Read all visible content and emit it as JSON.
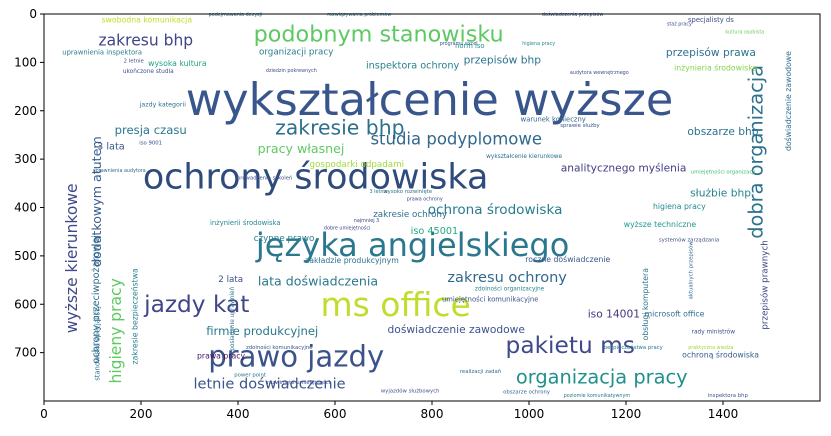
{
  "chart_data": {
    "type": "wordcloud",
    "xlim": [
      0,
      1600
    ],
    "ylim": [
      800,
      0
    ],
    "x_ticks": [
      0,
      200,
      400,
      600,
      800,
      1000,
      1200,
      1400
    ],
    "y_ticks": [
      0,
      100,
      200,
      300,
      400,
      500,
      600,
      700
    ],
    "background": "#ffffff",
    "words": [
      {
        "text": "wykształcenie wyższe",
        "x": 795,
        "y": 178,
        "size": 92,
        "color": "#39568c",
        "rotate": 0
      },
      {
        "text": "ochrony środowiska",
        "x": 560,
        "y": 338,
        "size": 72,
        "color": "#2f4b7c",
        "rotate": 0
      },
      {
        "text": "języka angielskiego",
        "x": 760,
        "y": 478,
        "size": 66,
        "color": "#2b788e",
        "rotate": 0
      },
      {
        "text": "ms office",
        "x": 725,
        "y": 600,
        "size": 68,
        "color": "#bfdd2c",
        "rotate": 0
      },
      {
        "text": "prawo jazdy",
        "x": 520,
        "y": 708,
        "size": 60,
        "color": "#3b528b",
        "rotate": 0
      },
      {
        "text": "jazdy kat",
        "x": 315,
        "y": 600,
        "size": 48,
        "color": "#404688",
        "rotate": 0
      },
      {
        "text": "podobnym stanowisku",
        "x": 690,
        "y": 42,
        "size": 46,
        "color": "#5ec962",
        "rotate": 0
      },
      {
        "text": "pakietu ms",
        "x": 1085,
        "y": 685,
        "size": 48,
        "color": "#3e4a89",
        "rotate": 0
      },
      {
        "text": "zakresie bhp",
        "x": 610,
        "y": 235,
        "size": 42,
        "color": "#2d708e",
        "rotate": 0
      },
      {
        "text": "organizacja pracy",
        "x": 1150,
        "y": 750,
        "size": 40,
        "color": "#21908d",
        "rotate": 0
      },
      {
        "text": "studia podyplomowe",
        "x": 850,
        "y": 258,
        "size": 34,
        "color": "#31688e",
        "rotate": 0
      },
      {
        "text": "dobra organizacja",
        "x": 1468,
        "y": 285,
        "size": 40,
        "color": "#2c728e",
        "rotate": -90
      },
      {
        "text": "wyższe kierunkowe",
        "x": 58,
        "y": 505,
        "size": 32,
        "color": "#3f4889",
        "rotate": -90
      },
      {
        "text": "higieny pracy",
        "x": 148,
        "y": 655,
        "size": 32,
        "color": "#5ec962",
        "rotate": -90
      },
      {
        "text": "letnie doświadczenie",
        "x": 465,
        "y": 765,
        "size": 30,
        "color": "#39558c",
        "rotate": 0
      },
      {
        "text": "zakresu ochrony",
        "x": 955,
        "y": 545,
        "size": 30,
        "color": "#31688e",
        "rotate": 0
      },
      {
        "text": "ochrona środowiska",
        "x": 930,
        "y": 405,
        "size": 28,
        "color": "#287c8e",
        "rotate": 0
      },
      {
        "text": "zakresu bhp",
        "x": 210,
        "y": 55,
        "size": 32,
        "color": "#404588",
        "rotate": 0
      },
      {
        "text": "lata doświadczenia",
        "x": 565,
        "y": 552,
        "size": 26,
        "color": "#2a788e",
        "rotate": 0
      },
      {
        "text": "pracy własnej",
        "x": 530,
        "y": 278,
        "size": 26,
        "color": "#5ec962",
        "rotate": 0
      },
      {
        "text": "firmie produkcyjnej",
        "x": 450,
        "y": 655,
        "size": 24,
        "color": "#2a778e",
        "rotate": 0
      },
      {
        "text": "doświadczenie zawodowe",
        "x": 850,
        "y": 652,
        "size": 22,
        "color": "#3a548c",
        "rotate": 0
      },
      {
        "text": "analitycznego myślenia",
        "x": 1195,
        "y": 318,
        "size": 22,
        "color": "#433e85",
        "rotate": 0
      },
      {
        "text": "przepisów bhp",
        "x": 945,
        "y": 95,
        "size": 22,
        "color": "#2c718e",
        "rotate": 0
      },
      {
        "text": "przepisów prawa",
        "x": 1375,
        "y": 80,
        "size": 22,
        "color": "#2c728e",
        "rotate": 0
      },
      {
        "text": "obszarze bhp",
        "x": 1400,
        "y": 243,
        "size": 22,
        "color": "#2c718e",
        "rotate": 0
      },
      {
        "text": "presja czasu",
        "x": 220,
        "y": 240,
        "size": 24,
        "color": "#2a788e",
        "rotate": 0
      },
      {
        "text": "dodatkowym atutem",
        "x": 108,
        "y": 388,
        "size": 26,
        "color": "#365c8d",
        "rotate": -90
      },
      {
        "text": "3 lata",
        "x": 138,
        "y": 275,
        "size": 20,
        "color": "#39568c",
        "rotate": 0
      },
      {
        "text": "służbie bhp",
        "x": 1395,
        "y": 370,
        "size": 22,
        "color": "#25838e",
        "rotate": 0
      },
      {
        "text": "organizacji pracy",
        "x": 520,
        "y": 80,
        "size": 18,
        "color": "#287d8e",
        "rotate": 0
      },
      {
        "text": "inspektora ochrony",
        "x": 760,
        "y": 108,
        "size": 20,
        "color": "#26828e",
        "rotate": 0
      },
      {
        "text": "iso 14001",
        "x": 1175,
        "y": 620,
        "size": 22,
        "color": "#46337f",
        "rotate": 0
      },
      {
        "text": "iso 45001",
        "x": 805,
        "y": 450,
        "size": 20,
        "color": "#22a884",
        "rotate": 0
      },
      {
        "text": "zakresie ochrony",
        "x": 755,
        "y": 415,
        "size": 18,
        "color": "#2d718e",
        "rotate": 0
      },
      {
        "text": "gospodarki odpadami",
        "x": 645,
        "y": 312,
        "size": 18,
        "color": "#a0da39",
        "rotate": 0
      },
      {
        "text": "czynne prawo",
        "x": 495,
        "y": 465,
        "size": 18,
        "color": "#287c8e",
        "rotate": 0
      },
      {
        "text": "2 lata",
        "x": 385,
        "y": 550,
        "size": 18,
        "color": "#3d4e8a",
        "rotate": 0
      },
      {
        "text": "zakładzie produkcyjnym",
        "x": 635,
        "y": 510,
        "size": 16,
        "color": "#2c728e",
        "rotate": 0
      },
      {
        "text": "ochrony przeciwpożarowej",
        "x": 108,
        "y": 590,
        "size": 20,
        "color": "#2f6b8e",
        "rotate": -90
      },
      {
        "text": "umiejętności komunikacyjne",
        "x": 920,
        "y": 590,
        "size": 14,
        "color": "#3a538b",
        "rotate": 0
      },
      {
        "text": "wyższe techniczne",
        "x": 1270,
        "y": 435,
        "size": 16,
        "color": "#1f988b",
        "rotate": 0
      },
      {
        "text": "swobodna komunikacja",
        "x": 212,
        "y": 12,
        "size": 16,
        "color": "#bddf26",
        "rotate": 0
      },
      {
        "text": "wysoka kultura",
        "x": 275,
        "y": 102,
        "size": 16,
        "color": "#20a386",
        "rotate": 0
      },
      {
        "text": "inżynieria środowiska",
        "x": 1385,
        "y": 112,
        "size": 16,
        "color": "#84d44b",
        "rotate": 0
      },
      {
        "text": "higiena pracy",
        "x": 1310,
        "y": 398,
        "size": 16,
        "color": "#238a8d",
        "rotate": 0
      },
      {
        "text": "uprawnienia inspektora",
        "x": 120,
        "y": 80,
        "size": 14,
        "color": "#287d8e",
        "rotate": 0
      },
      {
        "text": "prawa pracy",
        "x": 365,
        "y": 707,
        "size": 16,
        "color": "#471164",
        "rotate": 0
      },
      {
        "text": "ochroną środowiska",
        "x": 1395,
        "y": 705,
        "size": 16,
        "color": "#365d8d",
        "rotate": 0
      },
      {
        "text": "roczne doświadczenie",
        "x": 1080,
        "y": 508,
        "size": 16,
        "color": "#39568c",
        "rotate": 0
      },
      {
        "text": "microsoft office",
        "x": 1300,
        "y": 620,
        "size": 16,
        "color": "#2d708e",
        "rotate": 0
      },
      {
        "text": "zakresie bezpieczeństwa",
        "x": 188,
        "y": 625,
        "size": 16,
        "color": "#26818e",
        "rotate": -90
      },
      {
        "text": "przepisów prawnych",
        "x": 1488,
        "y": 560,
        "size": 18,
        "color": "#3e4989",
        "rotate": -90
      },
      {
        "text": "doświadczenie zawodowe",
        "x": 1535,
        "y": 180,
        "size": 16,
        "color": "#2e6e8e",
        "rotate": -90
      },
      {
        "text": "obsługi komputera",
        "x": 1240,
        "y": 600,
        "size": 16,
        "color": "#2a768e",
        "rotate": -90
      },
      {
        "text": "stanowisku specjalisty",
        "x": 110,
        "y": 680,
        "size": 14,
        "color": "#2c728e",
        "rotate": -90
      },
      {
        "text": "norm iso",
        "x": 878,
        "y": 66,
        "size": 14,
        "color": "#20928c",
        "rotate": 0
      },
      {
        "text": "specjalisty ds",
        "x": 1375,
        "y": 12,
        "size": 14,
        "color": "#3c4f8a",
        "rotate": 0
      },
      {
        "text": "warunek konieczny",
        "x": 1050,
        "y": 218,
        "size": 14,
        "color": "#31668e",
        "rotate": 0
      },
      {
        "text": "inżynierii środowiska",
        "x": 415,
        "y": 432,
        "size": 14,
        "color": "#24868e",
        "rotate": 0
      },
      {
        "text": "wykształcenie kierunkowe",
        "x": 990,
        "y": 296,
        "size": 12,
        "color": "#2d708e",
        "rotate": 0
      },
      {
        "text": "jazdy kategorii",
        "x": 245,
        "y": 188,
        "size": 13,
        "color": "#2c718e",
        "rotate": 0
      },
      {
        "text": "ukończone studia",
        "x": 215,
        "y": 120,
        "size": 12,
        "color": "#3b528b",
        "rotate": 0
      },
      {
        "text": "posiadanie uprawnień",
        "x": 390,
        "y": 630,
        "size": 12,
        "color": "#2c738e",
        "rotate": -90
      },
      {
        "text": "rady ministrów",
        "x": 1380,
        "y": 658,
        "size": 12,
        "color": "#3d4d8a",
        "rotate": 0
      },
      {
        "text": "2 letnie",
        "x": 185,
        "y": 98,
        "size": 11,
        "color": "#3d4d8a",
        "rotate": 0
      },
      {
        "text": "prowadzenia szkoleń",
        "x": 455,
        "y": 340,
        "size": 11,
        "color": "#3d4e8a",
        "rotate": 0
      },
      {
        "text": "wysoko rozwinięte",
        "x": 750,
        "y": 368,
        "size": 11,
        "color": "#2e6f8e",
        "rotate": 0
      },
      {
        "text": "zdolności organizacyjne",
        "x": 960,
        "y": 570,
        "size": 12,
        "color": "#25858e",
        "rotate": 0
      },
      {
        "text": "zdolności komunikacyjne",
        "x": 485,
        "y": 690,
        "size": 11,
        "color": "#3b528b",
        "rotate": 0
      },
      {
        "text": "realizacji zadań",
        "x": 900,
        "y": 740,
        "size": 11,
        "color": "#2f6c8e",
        "rotate": 0
      },
      {
        "text": "wyjazdów służbowych",
        "x": 755,
        "y": 780,
        "size": 11,
        "color": "#3a548c",
        "rotate": 0
      },
      {
        "text": "rozwinięte umiejętności",
        "x": 525,
        "y": 763,
        "size": 11,
        "color": "#3e4a89",
        "rotate": 0
      },
      {
        "text": "power point",
        "x": 425,
        "y": 747,
        "size": 11,
        "color": "#2c718e",
        "rotate": 0
      },
      {
        "text": "obszarze ochrony",
        "x": 995,
        "y": 782,
        "size": 11,
        "color": "#31668e",
        "rotate": 0
      },
      {
        "text": "podejmowania decyzji",
        "x": 395,
        "y": 2,
        "size": 10,
        "color": "#2c718e",
        "rotate": 0
      },
      {
        "text": "rozwiązywania problemów",
        "x": 650,
        "y": 2,
        "size": 10,
        "color": "#2a768e",
        "rotate": 0
      },
      {
        "text": "doświadczenia przepisów",
        "x": 1090,
        "y": 2,
        "size": 10,
        "color": "#3b518b",
        "rotate": 0
      },
      {
        "text": "programu excel",
        "x": 855,
        "y": 62,
        "size": 10,
        "color": "#365c8d",
        "rotate": 0
      },
      {
        "text": "higiena pracy",
        "x": 1020,
        "y": 62,
        "size": 10,
        "color": "#238a8d",
        "rotate": 0
      },
      {
        "text": "kultura osobista",
        "x": 1445,
        "y": 38,
        "size": 10,
        "color": "#6ccd5a",
        "rotate": 0
      },
      {
        "text": "staż pracy",
        "x": 1310,
        "y": 22,
        "size": 10,
        "color": "#3d4d8a",
        "rotate": 0
      },
      {
        "text": "dziedzin pokrewnych",
        "x": 510,
        "y": 118,
        "size": 10,
        "color": "#3d4e8a",
        "rotate": 0
      },
      {
        "text": "audytora wewnętrznego",
        "x": 1145,
        "y": 122,
        "size": 10,
        "color": "#3d4e8a",
        "rotate": 0
      },
      {
        "text": "bezpieczeństwa pracy",
        "x": 1215,
        "y": 690,
        "size": 11,
        "color": "#2d718e",
        "rotate": 0
      },
      {
        "text": "poziomie komunikatywnym",
        "x": 1140,
        "y": 790,
        "size": 10,
        "color": "#2a778e",
        "rotate": 0
      },
      {
        "text": "inspektora bhp",
        "x": 1410,
        "y": 790,
        "size": 11,
        "color": "#3b528b",
        "rotate": 0
      },
      {
        "text": "systemów zarządzania",
        "x": 1330,
        "y": 468,
        "size": 11,
        "color": "#3d4e8a",
        "rotate": 0
      },
      {
        "text": "aktualnych przepisów",
        "x": 1335,
        "y": 530,
        "size": 11,
        "color": "#31668e",
        "rotate": -90
      },
      {
        "text": "praktyczna wiedza",
        "x": 1375,
        "y": 690,
        "size": 10,
        "color": "#9ad93b",
        "rotate": 0
      },
      {
        "text": "sprawie służby",
        "x": 1105,
        "y": 232,
        "size": 11,
        "color": "#3a548c",
        "rotate": 0
      },
      {
        "text": "uprawnienia audytora",
        "x": 155,
        "y": 325,
        "size": 10,
        "color": "#2f6b8e",
        "rotate": 0
      },
      {
        "text": "iso 9001",
        "x": 220,
        "y": 268,
        "size": 11,
        "color": "#3d4d8a",
        "rotate": 0
      },
      {
        "text": "dobre umiejętności",
        "x": 625,
        "y": 443,
        "size": 10,
        "color": "#404688",
        "rotate": 0
      },
      {
        "text": "umiejętności organizacji",
        "x": 1400,
        "y": 328,
        "size": 11,
        "color": "#40bd72",
        "rotate": 0
      },
      {
        "text": "prawa ochrony",
        "x": 785,
        "y": 383,
        "size": 10,
        "color": "#3e4a89",
        "rotate": 0
      },
      {
        "text": "3 letnie",
        "x": 690,
        "y": 368,
        "size": 10,
        "color": "#2a768e",
        "rotate": 0
      },
      {
        "text": "najmniej 3",
        "x": 665,
        "y": 428,
        "size": 10,
        "color": "#404688",
        "rotate": 0
      }
    ]
  }
}
